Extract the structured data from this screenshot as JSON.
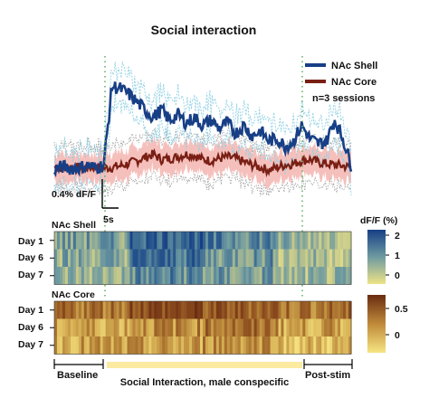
{
  "chart_data": {
    "type": "line",
    "title": "Social interaction",
    "legend": {
      "placement": "top-right",
      "note": "n=3 sessions"
    },
    "colors": {
      "shell": "#173f86",
      "shell_err": "#8fd0e4",
      "core": "#7a1f14",
      "core_err": "#f3b5b0",
      "dots": "#66b36a"
    },
    "scale_bar": {
      "y_label": "0.4% dF/F",
      "x_label": "5s"
    },
    "series": [
      {
        "name": "NAc Shell",
        "x": [
          0,
          2,
          4,
          6,
          8,
          10,
          12,
          14,
          16,
          18,
          20,
          22,
          24,
          26,
          28,
          30,
          32,
          34,
          36,
          38,
          40,
          42,
          44,
          46,
          48,
          50,
          52,
          54,
          56,
          58,
          60,
          62,
          64,
          66,
          68,
          70,
          72
        ],
        "y": [
          0.02,
          0.06,
          0.03,
          0.05,
          0.08,
          0.04,
          0.1,
          1.6,
          1.55,
          1.45,
          1.3,
          1.15,
          1.0,
          1.15,
          0.95,
          1.05,
          0.9,
          1.0,
          0.85,
          0.95,
          0.8,
          0.9,
          0.7,
          0.85,
          0.65,
          0.75,
          0.55,
          0.6,
          0.45,
          0.55,
          0.85,
          0.6,
          0.5,
          0.55,
          0.95,
          0.6,
          0.1
        ]
      },
      {
        "name": "NAc Core",
        "x": [
          0,
          2,
          4,
          6,
          8,
          10,
          12,
          14,
          16,
          18,
          20,
          22,
          24,
          26,
          28,
          30,
          32,
          34,
          36,
          38,
          40,
          42,
          44,
          46,
          48,
          50,
          52,
          54,
          56,
          58,
          60,
          62,
          64,
          66,
          68,
          70,
          72
        ],
        "y": [
          0.05,
          0.04,
          0.06,
          0.03,
          0.05,
          0.06,
          0.04,
          0.05,
          0.08,
          0.12,
          0.18,
          0.24,
          0.3,
          0.2,
          0.22,
          0.25,
          0.3,
          0.28,
          0.2,
          0.18,
          0.22,
          0.25,
          0.22,
          0.15,
          0.1,
          0.05,
          0.0,
          0.05,
          0.1,
          0.12,
          0.18,
          0.2,
          0.15,
          0.12,
          0.1,
          0.08,
          0.05
        ]
      }
    ],
    "heatmaps": [
      {
        "name": "NAc Shell",
        "rows": [
          "Day 1",
          "Day 6",
          "Day 7"
        ],
        "colorbar": {
          "label": "dF/F (%)",
          "ticks": [
            "2",
            "1",
            "0"
          ],
          "range": [
            0,
            2
          ]
        },
        "row_means": [
          [
            0.9,
            0.8,
            0.7
          ],
          [
            1.6,
            1.4,
            1.1
          ],
          [
            1.2,
            1.0,
            0.9
          ],
          [
            0.7,
            0.6,
            0.6
          ]
        ]
      },
      {
        "name": "NAc Core",
        "rows": [
          "Day 1",
          "Day 6",
          "Day 7"
        ],
        "colorbar": {
          "label": "",
          "ticks": [
            "0.5",
            "0"
          ],
          "range": [
            -0.2,
            0.7
          ]
        },
        "row_means": [
          [
            0.3,
            0.1,
            0.1
          ],
          [
            0.5,
            0.2,
            0.1
          ],
          [
            0.4,
            0.3,
            0.2
          ],
          [
            0.3,
            0.1,
            0.0
          ]
        ]
      }
    ],
    "epochs": [
      "Baseline",
      "Social Interaction, male conspecific",
      "Post-stim"
    ]
  }
}
